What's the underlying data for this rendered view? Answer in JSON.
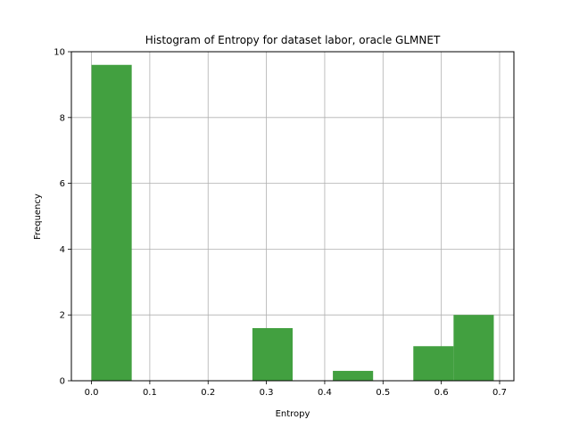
{
  "chart_data": {
    "type": "bar",
    "title": "Histogram of Entropy for dataset labor, oracle GLMNET",
    "xlabel": "Entropy",
    "ylabel": "Frequency",
    "xlim": [
      -0.0345,
      0.7245
    ],
    "ylim": [
      0,
      10
    ],
    "xticks": [
      "0.0",
      "0.1",
      "0.2",
      "0.3",
      "0.4",
      "0.5",
      "0.6",
      "0.7"
    ],
    "xtick_values": [
      0.0,
      0.1,
      0.2,
      0.3,
      0.4,
      0.5,
      0.6,
      0.7
    ],
    "yticks": [
      "0",
      "2",
      "4",
      "6",
      "8",
      "10"
    ],
    "ytick_values": [
      0,
      2,
      4,
      6,
      8,
      10
    ],
    "grid": true,
    "bar_color": "#42a040",
    "bins": [
      {
        "x0": 0.0,
        "x1": 0.069,
        "value": 9.6
      },
      {
        "x0": 0.069,
        "x1": 0.138,
        "value": 0
      },
      {
        "x0": 0.138,
        "x1": 0.207,
        "value": 0
      },
      {
        "x0": 0.207,
        "x1": 0.276,
        "value": 0
      },
      {
        "x0": 0.276,
        "x1": 0.345,
        "value": 1.6
      },
      {
        "x0": 0.345,
        "x1": 0.414,
        "value": 0
      },
      {
        "x0": 0.414,
        "x1": 0.483,
        "value": 0.3
      },
      {
        "x0": 0.483,
        "x1": 0.552,
        "value": 0
      },
      {
        "x0": 0.552,
        "x1": 0.621,
        "value": 1.05
      },
      {
        "x0": 0.621,
        "x1": 0.69,
        "value": 2.0
      }
    ]
  }
}
